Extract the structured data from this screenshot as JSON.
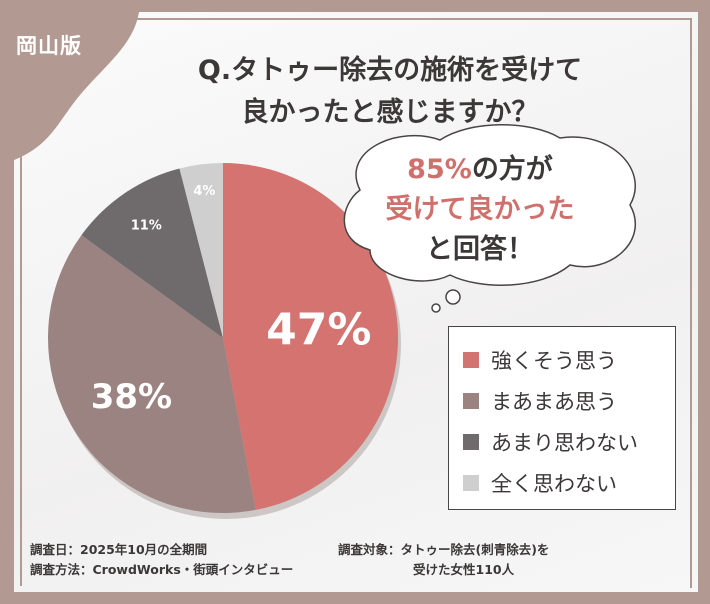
{
  "badge": "岡山版",
  "title_line1": "Q.タトゥー除去の施術を受けて",
  "title_line2": "良かったと感じますか？",
  "callout": {
    "pct": "85%",
    "line1_rest": "の方が",
    "line2": "受けて良かった",
    "line3": "と回答！"
  },
  "chart_data": {
    "type": "pie",
    "title": "Q.タトゥー除去の施術を受けて良かったと感じますか？",
    "categories": [
      "強くそう思う",
      "まあまあ思う",
      "あまり思わない",
      "全く思わない"
    ],
    "values": [
      47,
      38,
      11,
      4
    ],
    "labels": [
      "47%",
      "38%",
      "11%",
      "4%"
    ],
    "colors": [
      "#d4736f",
      "#9b8381",
      "#6f6b6c",
      "#cfcfcf"
    ],
    "legend": "right"
  },
  "footer": {
    "date": "調査日：2025年10月の全期間",
    "method": "調査方法：CrowdWorks・街頭インタビュー",
    "target1": "調査対象：タトゥー除去(刺青除去)を",
    "target2": "受けた女性110人"
  }
}
